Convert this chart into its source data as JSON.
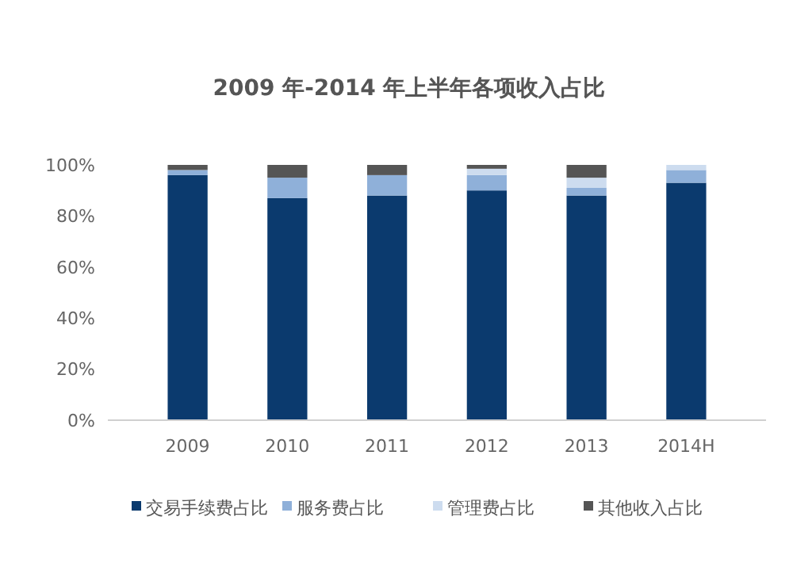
{
  "chart_data": {
    "type": "bar",
    "title": "2009 年-2014 年上半年各项收入占比",
    "stacked": true,
    "legend": "bottom",
    "categories": [
      "2009",
      "2010",
      "2011",
      "2012",
      "2013",
      "2014H"
    ],
    "series": [
      {
        "name": "交易手续费占比",
        "color": "#0b3a6e",
        "values": [
          96,
          87,
          88,
          90,
          88,
          93
        ]
      },
      {
        "name": "服务费占比",
        "color": "#8fb0d9",
        "values": [
          2,
          8,
          8,
          6,
          3,
          5
        ]
      },
      {
        "name": "管理费占比",
        "color": "#cddcef",
        "values": [
          0,
          0,
          0,
          2.5,
          4,
          2
        ]
      },
      {
        "name": "其他收入占比",
        "color": "#555555",
        "values": [
          2,
          5,
          4,
          1.5,
          5,
          0
        ]
      }
    ],
    "ylim": [
      0,
      100
    ],
    "yticks": [
      {
        "value": 0,
        "label": "0%"
      },
      {
        "value": 20,
        "label": "20%"
      },
      {
        "value": 40,
        "label": "40%"
      },
      {
        "value": 60,
        "label": "60%"
      },
      {
        "value": 80,
        "label": "80%"
      },
      {
        "value": 100,
        "label": "100%"
      }
    ]
  }
}
